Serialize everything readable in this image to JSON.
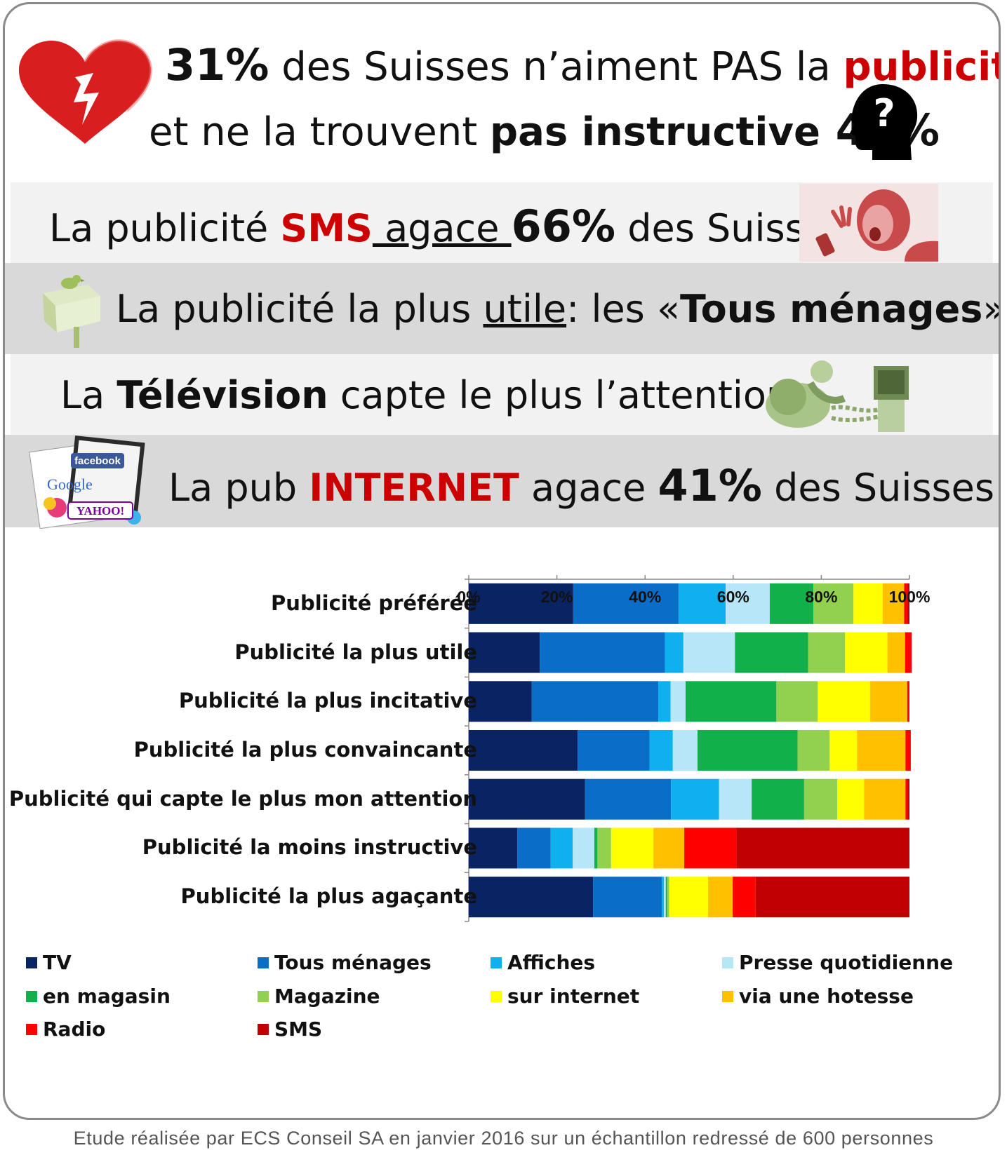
{
  "headline1": {
    "pct": "31%",
    "text": " des Suisses n’aiment PAS la ",
    "highlight": "publicité"
  },
  "headline2": {
    "text": "et ne la trouvent ",
    "bold": "pas instructive",
    "pct": " 42%"
  },
  "band_sms": {
    "pre": "La publicité ",
    "highlight": "SMS",
    "underlined": " agace ",
    "pct": "66%",
    "post": " des Suisses"
  },
  "band_tous": {
    "pre": "La publicité la plus ",
    "underlined": "utile",
    "mid": ": les «",
    "bold": "Tous ménages",
    "post": "»"
  },
  "band_tv": {
    "pre": "La ",
    "bold": "Télévision",
    "post": " capte le plus l’attention"
  },
  "band_internet": {
    "pre": "La pub ",
    "highlight": "INTERNET",
    "mid": " agace ",
    "pct": "41%",
    "post": " des Suisses"
  },
  "logos": {
    "facebook": "facebook",
    "google": "Google",
    "yahoo": "YAHOO!"
  },
  "chart_data": {
    "type": "bar",
    "orientation": "horizontal",
    "stacked": "percent",
    "xlim": [
      0,
      100
    ],
    "x_ticks": [
      "0%",
      "20%",
      "40%",
      "60%",
      "80%",
      "100%"
    ],
    "categories": [
      "Publicité préférée",
      "Publicité la plus utile",
      "Publicité la plus incitative",
      "Publicité la plus convaincante",
      "Publicité qui capte le plus mon attention",
      "Publicité la moins instructive",
      "Publicité la plus agaçante"
    ],
    "series": [
      {
        "name": "TV",
        "color": "#0a2463",
        "values": [
          23.7,
          16.1,
          14.3,
          24.7,
          26.4,
          11.0,
          28.2
        ]
      },
      {
        "name": "Tous ménages",
        "color": "#0a6ec8",
        "values": [
          23.9,
          28.4,
          28.7,
          16.3,
          19.5,
          7.6,
          15.6
        ]
      },
      {
        "name": "Affiches",
        "color": "#0fb0ee",
        "values": [
          10.7,
          4.2,
          2.8,
          5.3,
          10.9,
          5.0,
          0.5
        ]
      },
      {
        "name": "Presse quotidienne",
        "color": "#b6e6f8",
        "values": [
          10.0,
          11.7,
          3.4,
          5.6,
          7.4,
          4.9,
          0.4
        ]
      },
      {
        "name": "en magasin",
        "color": "#12b04a",
        "values": [
          9.9,
          16.6,
          20.6,
          22.7,
          11.9,
          0.7,
          0.3
        ]
      },
      {
        "name": "Magazine",
        "color": "#92d050",
        "values": [
          9.1,
          8.4,
          9.4,
          7.3,
          7.5,
          3.1,
          0.5
        ]
      },
      {
        "name": "sur internet",
        "color": "#ffff00",
        "values": [
          6.6,
          9.6,
          11.9,
          6.2,
          6.1,
          9.6,
          8.8
        ]
      },
      {
        "name": "via une hotesse",
        "color": "#ffc000",
        "values": [
          4.9,
          4.0,
          8.4,
          11.0,
          9.4,
          7.0,
          5.6
        ]
      },
      {
        "name": "Radio",
        "color": "#ff0000",
        "values": [
          0.8,
          1.5,
          0.4,
          1.2,
          0.5,
          11.8,
          5.2
        ]
      },
      {
        "name": "SMS",
        "color": "#c00000",
        "values": [
          0.4,
          0.0,
          0.1,
          0.0,
          0.4,
          39.3,
          34.9
        ]
      }
    ],
    "legend_position": "bottom"
  },
  "footer": "Etude réalisée par ECS Conseil SA en janvier 2016 sur un échantillon redressé de 600 personnes"
}
